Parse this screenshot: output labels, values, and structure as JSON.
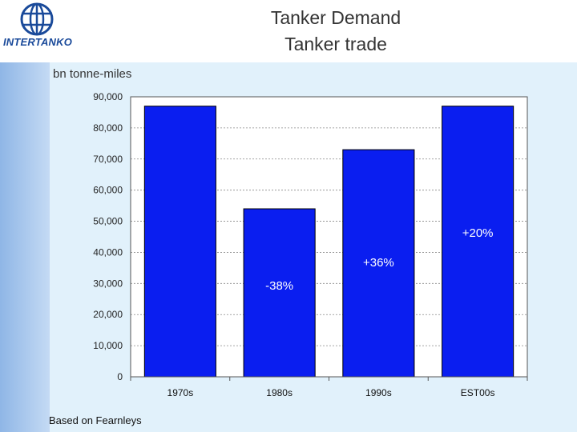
{
  "header": {
    "logo_text": "INTERTANKO",
    "title_line1": "Tanker Demand",
    "title_line2": "Tanker trade"
  },
  "footer": {
    "source": "Based on Fearnleys"
  },
  "colors": {
    "bar": "#0a1ef0",
    "annotation": "#ffffff",
    "grid": "#888888"
  },
  "chart_data": {
    "type": "bar",
    "title": "Tanker trade",
    "ylabel": "bn tonne-miles",
    "xlabel": "",
    "categories": [
      "1970s",
      "1980s",
      "1990s",
      "EST00s"
    ],
    "values": [
      87000,
      54000,
      73000,
      87000
    ],
    "ylim": [
      0,
      90000
    ],
    "yticks": [
      0,
      10000,
      20000,
      30000,
      40000,
      50000,
      60000,
      70000,
      80000,
      90000
    ],
    "ytick_labels": [
      "0",
      "10,000",
      "20,000",
      "30,000",
      "40,000",
      "50,000",
      "60,000",
      "70,000",
      "80,000",
      "90,000"
    ],
    "grid": true,
    "annotations": [
      {
        "category": "1980s",
        "text": "-38%",
        "y": 28000
      },
      {
        "category": "1990s",
        "text": "+36%",
        "y": 35500
      },
      {
        "category": "EST00s",
        "text": "+20%",
        "y": 45000
      }
    ]
  }
}
